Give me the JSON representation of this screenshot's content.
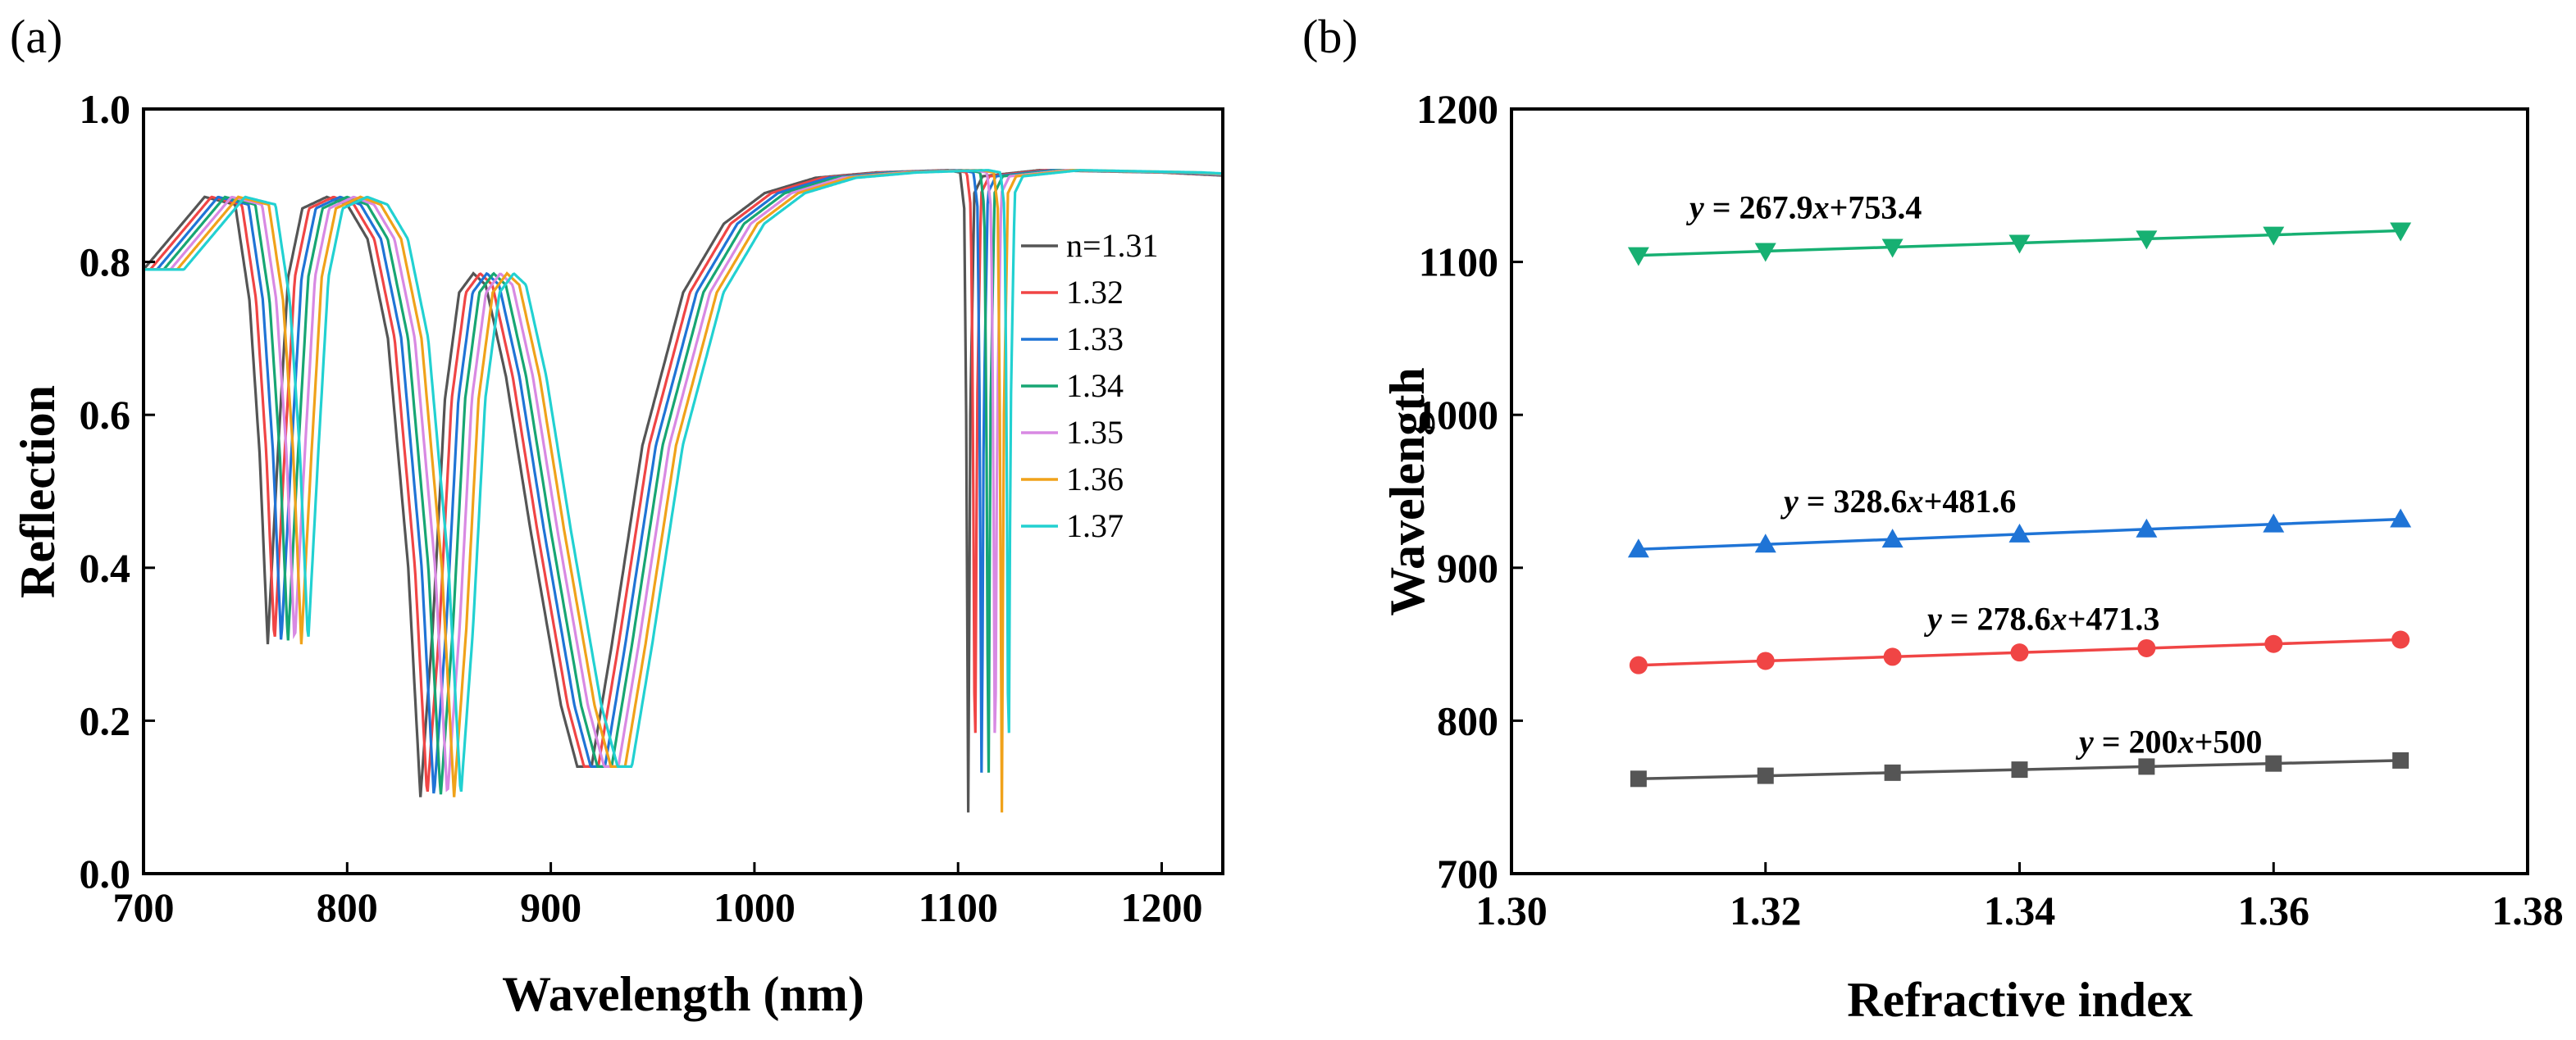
{
  "panels": {
    "a": "(a)",
    "b": "(b)"
  },
  "chart_data": [
    {
      "type": "line",
      "panel": "(a)",
      "xlabel": "Wavelength (nm)",
      "ylabel": "Reflection",
      "xlim": [
        700,
        1230
      ],
      "ylim": [
        0.0,
        1.0
      ],
      "xticks": [
        700,
        800,
        900,
        1000,
        1100,
        1200
      ],
      "xtick_labels": [
        "700",
        "800",
        "900",
        "1000",
        "1100",
        "1200"
      ],
      "yticks": [
        0.0,
        0.2,
        0.4,
        0.6,
        0.8,
        1.0
      ],
      "ytick_labels": [
        "0.0",
        "0.2",
        "0.4",
        "0.6",
        "0.8",
        "1.0"
      ],
      "legend_position": "right",
      "baseline": [
        [
          700,
          0.79
        ],
        [
          730,
          0.885
        ],
        [
          745,
          0.875
        ],
        [
          752,
          0.75
        ],
        [
          757,
          0.55
        ],
        [
          761,
          0.3
        ],
        [
          766,
          0.55
        ],
        [
          771,
          0.78
        ],
        [
          778,
          0.87
        ],
        [
          790,
          0.885
        ],
        [
          800,
          0.875
        ],
        [
          810,
          0.83
        ],
        [
          820,
          0.7
        ],
        [
          830,
          0.4
        ],
        [
          836,
          0.1
        ],
        [
          842,
          0.32
        ],
        [
          848,
          0.62
        ],
        [
          855,
          0.76
        ],
        [
          862,
          0.785
        ],
        [
          868,
          0.77
        ],
        [
          878,
          0.65
        ],
        [
          890,
          0.45
        ],
        [
          905,
          0.22
        ],
        [
          913,
          0.14
        ],
        [
          920,
          0.14
        ],
        [
          930,
          0.3
        ],
        [
          945,
          0.56
        ],
        [
          965,
          0.76
        ],
        [
          985,
          0.85
        ],
        [
          1005,
          0.89
        ],
        [
          1030,
          0.91
        ],
        [
          1060,
          0.917
        ],
        [
          1095,
          0.92
        ],
        [
          1101,
          0.917
        ],
        [
          1103,
          0.87
        ],
        [
          1104,
          0.6
        ],
        [
          1105,
          0.08
        ],
        [
          1106,
          0.6
        ],
        [
          1108,
          0.89
        ],
        [
          1112,
          0.912
        ],
        [
          1140,
          0.92
        ],
        [
          1200,
          0.917
        ],
        [
          1230,
          0.913
        ]
      ],
      "series": [
        {
          "name": "n=1.31",
          "color": "#555555",
          "shift": 0
        },
        {
          "name": "1.32",
          "color": "#f04545",
          "shift": 3.3
        },
        {
          "name": "1.33",
          "color": "#1f74d6",
          "shift": 6.6
        },
        {
          "name": "1.34",
          "color": "#17a673",
          "shift": 9.9
        },
        {
          "name": "1.35",
          "color": "#d889e3",
          "shift": 13.2
        },
        {
          "name": "1.36",
          "color": "#f0a21a",
          "shift": 16.5
        },
        {
          "name": "1.37",
          "color": "#22d1d1",
          "shift": 19.8
        }
      ]
    },
    {
      "type": "scatter",
      "panel": "(b)",
      "xlabel": "Refractive index",
      "ylabel": "Wavelength",
      "xlim": [
        1.3,
        1.38
      ],
      "ylim": [
        700,
        1200
      ],
      "xticks": [
        1.3,
        1.32,
        1.34,
        1.36,
        1.38
      ],
      "xtick_labels": [
        "1.30",
        "1.32",
        "1.34",
        "1.36",
        "1.38"
      ],
      "yticks": [
        700,
        800,
        900,
        1000,
        1100,
        1200
      ],
      "ytick_labels": [
        "700",
        "800",
        "900",
        "1000",
        "1100",
        "1200"
      ],
      "x": [
        1.31,
        1.32,
        1.33,
        1.34,
        1.35,
        1.36,
        1.37
      ],
      "series": [
        {
          "name": "y = 200x+500",
          "eq_y": "y",
          "eq_rest": " = 200",
          "eq_x": "x",
          "eq_tail": "+500",
          "color": "#555555",
          "marker": "square",
          "values": [
            762,
            764,
            766,
            768,
            770,
            772,
            774
          ]
        },
        {
          "name": "y = 278.6x+471.3",
          "eq_y": "y",
          "eq_rest": " = 278.6",
          "eq_x": "x",
          "eq_tail": "+471.3",
          "color": "#f04545",
          "marker": "circle",
          "values": [
            836.3,
            839.1,
            841.8,
            844.6,
            847.4,
            850.2,
            853.0
          ]
        },
        {
          "name": "y = 328.6x+481.6",
          "eq_y": "y",
          "eq_rest": " = 328.6",
          "eq_x": "x",
          "eq_tail": "+481.6",
          "color": "#1f74d6",
          "marker": "triangle-up",
          "values": [
            912.1,
            915.3,
            918.6,
            921.9,
            925.2,
            928.5,
            931.8
          ]
        },
        {
          "name": "y = 267.9x+753.4",
          "eq_y": "y",
          "eq_rest": " = 267.9",
          "eq_x": "x",
          "eq_tail": "+753.4",
          "color": "#17b072",
          "marker": "triangle-down",
          "values": [
            1104.3,
            1107.0,
            1109.7,
            1112.4,
            1115.1,
            1117.7,
            1120.4
          ]
        }
      ]
    }
  ]
}
